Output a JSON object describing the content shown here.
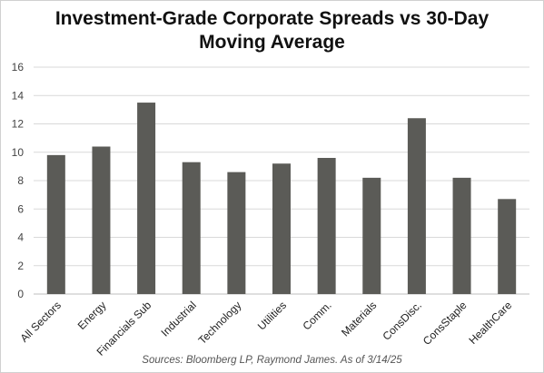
{
  "chart_data": {
    "type": "bar",
    "title": "Investment-Grade Corporate Spreads vs 30-Day\nMoving Average",
    "xlabel": "",
    "ylabel": "",
    "categories": [
      "All Sectors",
      "Energy",
      "Financials Sub",
      "Industrial",
      "Technology",
      "Utilities",
      "Comm.",
      "Materials",
      "ConsDisc.",
      "ConsStaple",
      "HealthCare"
    ],
    "values": [
      9.8,
      10.4,
      13.5,
      9.3,
      8.6,
      9.2,
      9.6,
      8.2,
      12.4,
      8.2,
      6.7
    ],
    "ylim": [
      0,
      16
    ],
    "yticks": [
      0,
      2,
      4,
      6,
      8,
      10,
      12,
      14,
      16
    ],
    "grid": true,
    "legend": "none",
    "bar_color": "#5b5b57",
    "gridline_color": "#d9d9d9"
  },
  "source": "Sources: Bloomberg LP, Raymond James. As of 3/14/25"
}
